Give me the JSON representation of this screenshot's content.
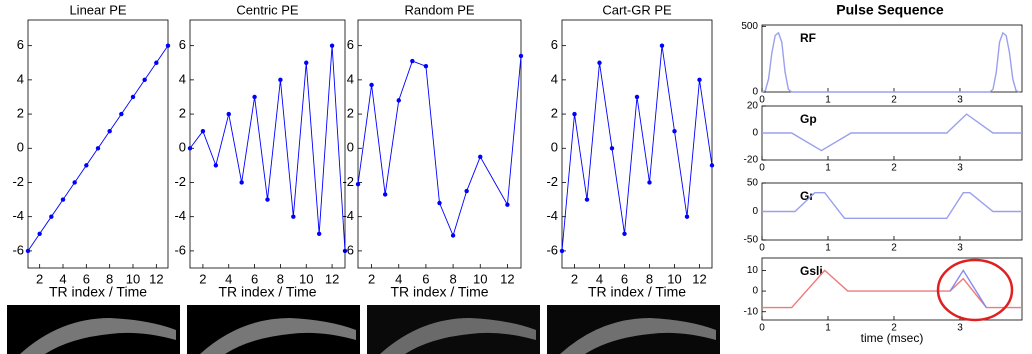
{
  "chart_data": [
    {
      "type": "line",
      "title": "Linear PE",
      "xlabel": "TR index / Time",
      "markers": true,
      "x": [
        1,
        2,
        3,
        4,
        5,
        6,
        7,
        8,
        9,
        10,
        11,
        12,
        13
      ],
      "series": [
        {
          "color": "#0000ff",
          "values": [
            -6,
            -5,
            -4,
            -3,
            -2,
            -1,
            0,
            1,
            2,
            3,
            4,
            5,
            6
          ]
        }
      ],
      "xlim": [
        1,
        13
      ],
      "ylim": [
        -7,
        7.5
      ],
      "xticks": [
        2,
        4,
        6,
        8,
        10,
        12
      ],
      "yticks": [
        -6,
        -4,
        -2,
        0,
        2,
        4,
        6
      ]
    },
    {
      "type": "line",
      "title": "Centric PE",
      "xlabel": "TR index / Time",
      "markers": true,
      "x": [
        1,
        2,
        3,
        4,
        5,
        6,
        7,
        8,
        9,
        10,
        11,
        12,
        13
      ],
      "series": [
        {
          "color": "#0000ff",
          "values": [
            0,
            1,
            -1,
            2,
            -2,
            3,
            -3,
            4,
            -4,
            5,
            -5,
            6,
            -6
          ]
        }
      ],
      "xlim": [
        1,
        13
      ],
      "ylim": [
        -7,
        7.5
      ],
      "xticks": [
        2,
        4,
        6,
        8,
        10,
        12
      ],
      "yticks": [
        -6,
        -4,
        -2,
        0,
        2,
        4,
        6
      ]
    },
    {
      "type": "line",
      "title": "Random PE",
      "xlabel": "TR index / Time",
      "markers": true,
      "x": [
        1,
        2,
        3,
        4,
        5,
        6,
        7,
        8,
        9,
        10,
        12,
        13
      ],
      "series": [
        {
          "color": "#0000ff",
          "values": [
            -2.1,
            3.7,
            -2.7,
            2.8,
            5.1,
            4.8,
            -3.2,
            -5.1,
            -2.5,
            -0.5,
            -3.3,
            5.4
          ]
        }
      ],
      "xlim": [
        1,
        13
      ],
      "ylim": [
        -7,
        7.5
      ],
      "xticks": [
        2,
        4,
        6,
        8,
        10,
        12
      ],
      "yticks": [
        -6,
        -4,
        -2,
        0,
        2,
        4,
        6
      ]
    },
    {
      "type": "line",
      "title": "Cart-GR PE",
      "xlabel": "TR index / Time",
      "markers": true,
      "x": [
        1,
        2,
        3,
        4,
        5,
        6,
        7,
        8,
        9,
        10,
        11,
        12,
        13
      ],
      "series": [
        {
          "color": "#0000ff",
          "values": [
            -6,
            2,
            -3,
            5,
            0,
            -5,
            3,
            -2,
            6,
            1,
            -4,
            4,
            -1
          ]
        }
      ],
      "xlim": [
        1,
        13
      ],
      "ylim": [
        -7,
        7.5
      ],
      "xticks": [
        2,
        4,
        6,
        8,
        10,
        12
      ],
      "yticks": [
        -6,
        -4,
        -2,
        0,
        2,
        4,
        6
      ]
    },
    {
      "type": "line",
      "title": "Pulse Sequence",
      "annotation": "RF",
      "markers": false,
      "x": [
        0,
        0.05,
        0.1,
        0.15,
        0.2,
        0.25,
        0.3,
        0.35,
        0.4,
        0.45,
        3.45,
        3.5,
        3.55,
        3.6,
        3.65,
        3.7,
        3.75,
        3.8,
        3.85,
        3.9
      ],
      "series": [
        {
          "color": "#9aa0ee",
          "values": [
            0,
            10,
            100,
            300,
            430,
            450,
            380,
            150,
            20,
            0,
            0,
            20,
            150,
            380,
            450,
            430,
            300,
            100,
            10,
            0
          ]
        }
      ],
      "xlim": [
        0,
        3.94
      ],
      "ylim": [
        0,
        510
      ],
      "xticks": [
        0,
        1,
        2,
        3
      ],
      "yticks": [
        0,
        500
      ]
    },
    {
      "type": "line",
      "annotation": "Gp",
      "markers": false,
      "x": [
        0,
        0.45,
        0.9,
        1.35,
        2.8,
        3.1,
        3.5,
        3.94
      ],
      "series": [
        {
          "color": "#9aa0ee",
          "values": [
            0,
            0,
            -13,
            0,
            0,
            14,
            0,
            0
          ]
        }
      ],
      "xlim": [
        0,
        3.94
      ],
      "ylim": [
        -20,
        20
      ],
      "xticks": [
        0,
        1,
        2,
        3
      ],
      "yticks": [
        -20,
        0,
        20
      ]
    },
    {
      "type": "line",
      "annotation": "Gr",
      "markers": false,
      "x": [
        0,
        0.5,
        0.8,
        0.95,
        1.25,
        2.8,
        3.05,
        3.15,
        3.5,
        3.94
      ],
      "series": [
        {
          "color": "#9aa0ee",
          "values": [
            0,
            0,
            33,
            33,
            -12,
            -12,
            33,
            33,
            0,
            0
          ]
        }
      ],
      "xlim": [
        0,
        3.94
      ],
      "ylim": [
        -50,
        50
      ],
      "xticks": [
        0,
        1,
        2,
        3
      ],
      "yticks": [
        -50,
        0,
        50
      ]
    },
    {
      "type": "line",
      "annotation": "Gsli",
      "xlabel": "time (msec)",
      "markers": false,
      "x": [
        0,
        0.45,
        0.95,
        1.3,
        2.85,
        3.05,
        3.4,
        3.94
      ],
      "series": [
        {
          "color": "#ee7a7a",
          "values": [
            -8,
            -8,
            10,
            0,
            0,
            6,
            -8,
            -8
          ]
        },
        {
          "color": "#8888ee",
          "values": [
            null,
            null,
            null,
            null,
            0,
            10,
            -8,
            null
          ]
        }
      ],
      "xlim": [
        0,
        3.94
      ],
      "ylim": [
        -14,
        16
      ],
      "xticks": [
        0,
        1,
        2,
        3
      ],
      "yticks": [
        -10,
        0,
        10
      ]
    }
  ]
}
